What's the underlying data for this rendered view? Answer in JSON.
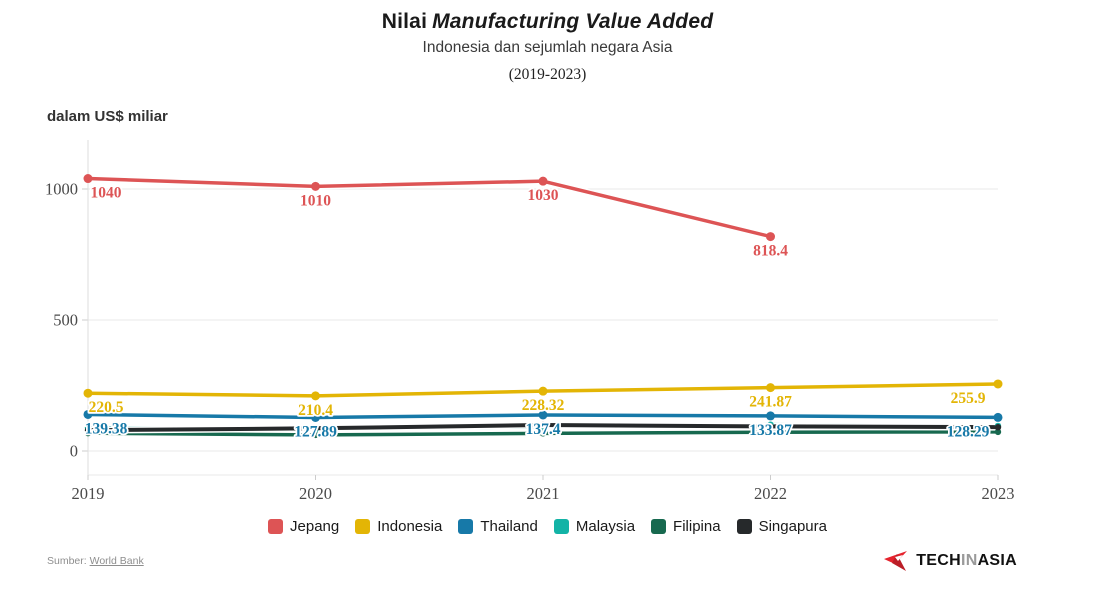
{
  "title": {
    "text": "Nilai",
    "italic_text": "Manufacturing Value Added"
  },
  "subtitle": "Indonesia dan sejumlah negara Asia",
  "period": "(2019-2023)",
  "unit_label": "dalam US$ miliar",
  "source": {
    "prefix": "Sumber: ",
    "link_text": "World Bank"
  },
  "logo": {
    "tech": "TECH",
    "in": "IN",
    "asia": "ASIA",
    "mark_color": "#e5232d"
  },
  "colors": {
    "grid": "#e8e8e8",
    "axis": "#dedede",
    "tick": "#cccccc",
    "tick_label": "#4a4a4a",
    "background": "#ffffff"
  },
  "chart_data": {
    "type": "line",
    "x": [
      "2019",
      "2020",
      "2021",
      "2022",
      "2023"
    ],
    "yticks": [
      "0",
      "500",
      "1000"
    ],
    "ytick_values": [
      0,
      500,
      1000
    ],
    "ylim": [
      0,
      1187
    ],
    "grid": "horizontal",
    "legend_position": "bottom",
    "series": [
      {
        "name": "Jepang",
        "color": "#dd5455",
        "line_width": 3.5,
        "values": [
          1040,
          1010,
          1030,
          818.4,
          null
        ],
        "labels": [
          "1040",
          "1010",
          "1030",
          "818.4",
          null
        ],
        "labels_shown": true
      },
      {
        "name": "Indonesia",
        "color": "#e3b505",
        "line_width": 3.5,
        "values": [
          220.5,
          210.4,
          228.32,
          241.87,
          255.9
        ],
        "labels": [
          "220.5",
          "210.4",
          "228.32",
          "241.87",
          "255.9"
        ],
        "labels_shown": true
      },
      {
        "name": "Thailand",
        "color": "#1779a8",
        "line_width": 3.5,
        "values": [
          139.38,
          127.89,
          137.4,
          133.87,
          128.29
        ],
        "labels": [
          "139.38",
          "127.89",
          "137.4",
          "133.87",
          "128.29"
        ],
        "labels_shown": true
      },
      {
        "name": "Malaysia",
        "color": "#13b3a6",
        "line_width": 3.5,
        "values": [
          88.8,
          82.8,
          92.7,
          100.5,
          95.7
        ],
        "labels": null,
        "labels_shown": false,
        "values_estimated": true
      },
      {
        "name": "Filipina",
        "color": "#17694f",
        "line_width": 3.5,
        "values": [
          68.1,
          61.4,
          67.4,
          71.5,
          73.0
        ],
        "labels": null,
        "labels_shown": false,
        "values_estimated": true
      },
      {
        "name": "Singapura",
        "color": "#26292b",
        "line_width": 4,
        "values": [
          79.3,
          86.6,
          99.2,
          93.9,
          90.9
        ],
        "labels": null,
        "labels_shown": false,
        "values_estimated": true
      }
    ]
  }
}
